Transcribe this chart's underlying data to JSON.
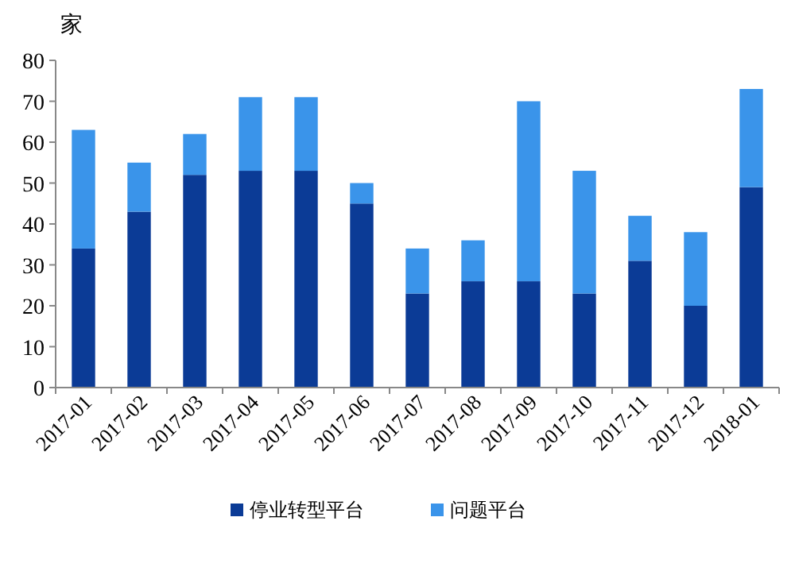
{
  "chart_data": {
    "type": "bar",
    "ylabel": "家",
    "stacked": true,
    "legend": "bottom",
    "grid": false,
    "categories": [
      "2017-01",
      "2017-02",
      "2017-03",
      "2017-04",
      "2017-05",
      "2017-06",
      "2017-07",
      "2017-08",
      "2017-09",
      "2017-10",
      "2017-11",
      "2017-12",
      "2018-01"
    ],
    "series": [
      {
        "name": "停业转型平台",
        "color": "#0b3b96",
        "values": [
          34,
          43,
          52,
          53,
          53,
          45,
          23,
          26,
          26,
          23,
          31,
          20,
          49
        ]
      },
      {
        "name": "问题平台",
        "color": "#3a94ea",
        "values": [
          29,
          12,
          10,
          18,
          18,
          5,
          11,
          10,
          44,
          30,
          11,
          18,
          24
        ]
      }
    ],
    "ylim": [
      0,
      80
    ],
    "yticks": [
      0,
      10,
      20,
      30,
      40,
      50,
      60,
      70,
      80
    ]
  }
}
